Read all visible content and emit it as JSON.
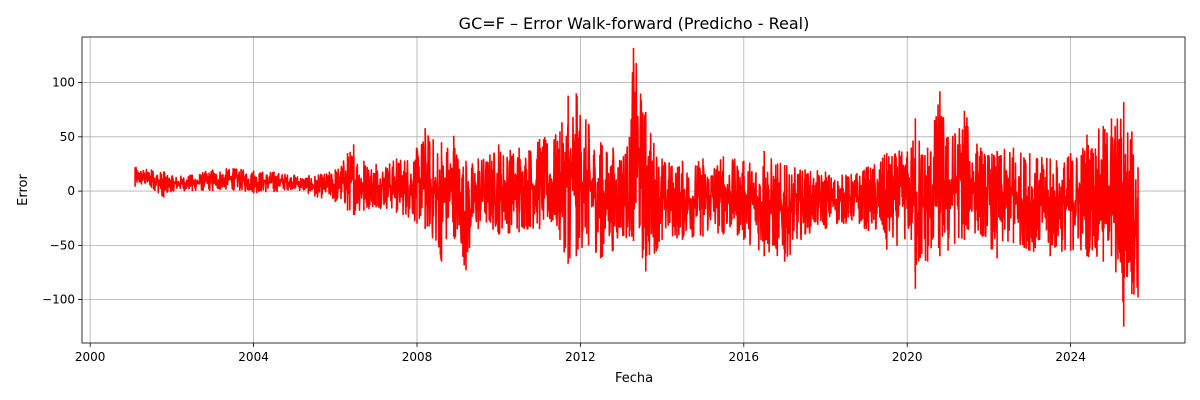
{
  "chart_data": {
    "type": "line",
    "title": "GC=F – Error Walk-forward (Predicho - Real)",
    "xlabel": "Fecha",
    "ylabel": "Error",
    "grid": true,
    "legend": "none",
    "series_color": "#ff0000",
    "xlim": [
      1999.8,
      2026.8
    ],
    "ylim": [
      -140,
      142
    ],
    "x_ticks": [
      2000,
      2004,
      2008,
      2012,
      2016,
      2020,
      2024
    ],
    "x_tick_labels": [
      "2000",
      "2004",
      "2008",
      "2012",
      "2016",
      "2020",
      "2024"
    ],
    "y_ticks": [
      -100,
      -50,
      0,
      50,
      100
    ],
    "y_tick_labels": [
      "−100",
      "−50",
      "0",
      "50",
      "100"
    ],
    "series": [
      {
        "x": [
          2001.1,
          2001.5,
          2001.8,
          2002.0,
          2002.5,
          2003.0,
          2003.5,
          2004.0,
          2004.5,
          2005.0,
          2005.5,
          2006.0,
          2006.3,
          2006.45,
          2006.7,
          2007.0,
          2007.5,
          2008.0,
          2008.2,
          2008.6,
          2008.9,
          2009.2,
          2009.5,
          2010.0,
          2010.5,
          2011.0,
          2011.5,
          2011.7,
          2011.9,
          2012.2,
          2012.5,
          2012.8,
          2013.2,
          2013.3,
          2013.6,
          2014.0,
          2014.5,
          2015.0,
          2015.5,
          2016.0,
          2016.5,
          2017.0,
          2017.5,
          2018.0,
          2018.5,
          2019.0,
          2019.5,
          2020.1,
          2020.2,
          2020.5,
          2020.8,
          2021.0,
          2021.4,
          2021.8,
          2022.2,
          2022.6,
          2023.0,
          2023.5,
          2024.0,
          2024.4,
          2024.8,
          2025.0,
          2025.3,
          2025.5,
          2025.65
        ],
        "min": [
          4,
          3,
          -6,
          0,
          0,
          0,
          1,
          -2,
          -1,
          2,
          -5,
          -10,
          -18,
          -22,
          -18,
          -15,
          -20,
          -30,
          -35,
          -65,
          -42,
          -73,
          -35,
          -40,
          -38,
          -35,
          -45,
          -67,
          -60,
          -50,
          -62,
          -55,
          -42,
          -46,
          -74,
          -45,
          -45,
          -42,
          -40,
          -45,
          -60,
          -65,
          -40,
          -35,
          -30,
          -35,
          -54,
          -45,
          -90,
          -65,
          -60,
          -55,
          -45,
          -40,
          -62,
          -48,
          -55,
          -60,
          -55,
          -60,
          -65,
          -60,
          -125,
          -95,
          -98
        ],
        "max": [
          22,
          20,
          18,
          14,
          15,
          20,
          21,
          19,
          18,
          15,
          14,
          20,
          35,
          43,
          28,
          25,
          30,
          40,
          58,
          45,
          51,
          28,
          30,
          43,
          40,
          48,
          55,
          88,
          90,
          62,
          45,
          40,
          50,
          132,
          73,
          30,
          28,
          30,
          32,
          28,
          37,
          24,
          20,
          18,
          15,
          22,
          35,
          40,
          67,
          40,
          92,
          50,
          74,
          40,
          37,
          40,
          35,
          30,
          35,
          52,
          60,
          67,
          82,
          55,
          22
        ]
      }
    ]
  }
}
